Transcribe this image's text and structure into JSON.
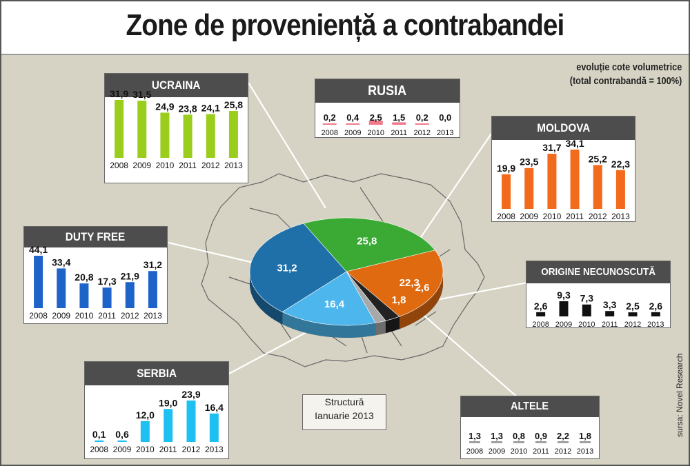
{
  "title": "Zone de proveniență a contrabandei",
  "note": {
    "line1": "evoluție cote volumetrice",
    "line2": "(total contrabandă = 100%)"
  },
  "source": "sursa: Novel Research",
  "structure_label": {
    "line1": "Structură",
    "line2": "Ianuarie 2013"
  },
  "chart_data": [
    {
      "type": "pie",
      "slices": [
        {
          "label": "25,8",
          "value": 25.8,
          "color": "#3aaa35"
        },
        {
          "label": "22,3",
          "value": 22.3,
          "color": "#e06a10"
        },
        {
          "label": "2,6",
          "value": 2.6,
          "color": "#222222"
        },
        {
          "label": "1,8",
          "value": 1.8,
          "color": "#a8a8a8"
        },
        {
          "label": "16,4",
          "value": 16.4,
          "color": "#4db6ec"
        },
        {
          "label": "31,2",
          "value": 31.2,
          "color": "#1f6fa8"
        }
      ]
    },
    {
      "type": "bar",
      "title": "UCRAINA",
      "categories": [
        "2008",
        "2009",
        "2010",
        "2011",
        "2012",
        "2013"
      ],
      "values": [
        31.9,
        31.5,
        24.9,
        23.8,
        24.1,
        25.8
      ],
      "labels": [
        "31,9",
        "31,5",
        "24,9",
        "23,8",
        "24,1",
        "25,8"
      ],
      "color": "#9acd1c"
    },
    {
      "type": "bar",
      "title": "RUSIA",
      "categories": [
        "2008",
        "2009",
        "2010",
        "2011",
        "2012",
        "2013"
      ],
      "values": [
        0.2,
        0.4,
        2.5,
        1.5,
        0.2,
        0.0
      ],
      "labels": [
        "0,2",
        "0,4",
        "2,5",
        "1,5",
        "0,2",
        "0,0"
      ],
      "color": "#f07a8c"
    },
    {
      "type": "bar",
      "title": "MOLDOVA",
      "categories": [
        "2008",
        "2009",
        "2010",
        "2011",
        "2012",
        "2013"
      ],
      "values": [
        19.9,
        23.5,
        31.7,
        34.1,
        25.2,
        22.3
      ],
      "labels": [
        "19,9",
        "23,5",
        "31,7",
        "34,1",
        "25,2",
        "22,3"
      ],
      "color": "#f26a1b"
    },
    {
      "type": "bar",
      "title": "DUTY FREE",
      "categories": [
        "2008",
        "2009",
        "2010",
        "2011",
        "2012",
        "2013"
      ],
      "values": [
        44.1,
        33.4,
        20.8,
        17.3,
        21.9,
        31.2
      ],
      "labels": [
        "44,1",
        "33,4",
        "20,8",
        "17,3",
        "21,9",
        "31,2"
      ],
      "color": "#1d63c8"
    },
    {
      "type": "bar",
      "title": "ORIGINE NECUNOSCUTĂ",
      "categories": [
        "2008",
        "2009",
        "2010",
        "2011",
        "2012",
        "2013"
      ],
      "values": [
        2.6,
        9.3,
        7.3,
        3.3,
        2.5,
        2.6
      ],
      "labels": [
        "2,6",
        "9,3",
        "7,3",
        "3,3",
        "2,5",
        "2,6"
      ],
      "color": "#111111"
    },
    {
      "type": "bar",
      "title": "SERBIA",
      "categories": [
        "2008",
        "2009",
        "2010",
        "2011",
        "2012",
        "2013"
      ],
      "values": [
        0.1,
        0.6,
        12.0,
        19.0,
        23.9,
        16.4
      ],
      "labels": [
        "0,1",
        "0,6",
        "12,0",
        "19,0",
        "23,9",
        "16,4"
      ],
      "color": "#1ec0f2"
    },
    {
      "type": "bar",
      "title": "ALTELE",
      "categories": [
        "2008",
        "2009",
        "2010",
        "2011",
        "2012",
        "2013"
      ],
      "values": [
        1.3,
        1.3,
        0.8,
        0.9,
        2.2,
        1.8
      ],
      "labels": [
        "1,3",
        "1,3",
        "0,8",
        "0,9",
        "2,2",
        "1,8"
      ],
      "color": "#a0a0a0"
    }
  ]
}
